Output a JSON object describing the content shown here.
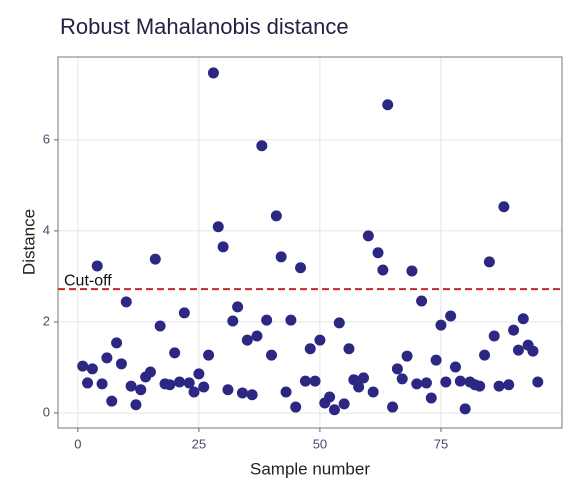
{
  "chart_data": {
    "type": "scatter",
    "title": "Robust Mahalanobis distance",
    "x_label": "Sample number",
    "y_label": "Distance",
    "x": [
      1,
      2,
      3,
      4,
      5,
      6,
      7,
      8,
      9,
      10,
      11,
      12,
      13,
      14,
      15,
      16,
      17,
      18,
      19,
      20,
      21,
      22,
      23,
      24,
      25,
      26,
      27,
      28,
      29,
      30,
      31,
      32,
      33,
      34,
      35,
      36,
      37,
      38,
      39,
      40,
      41,
      42,
      43,
      44,
      45,
      46,
      47,
      48,
      49,
      50,
      51,
      52,
      53,
      54,
      55,
      56,
      57,
      58,
      59,
      60,
      61,
      62,
      63,
      64,
      65,
      66,
      67,
      68,
      69,
      70,
      71,
      72,
      73,
      74,
      75,
      76,
      77,
      78,
      79,
      80,
      81,
      82,
      83,
      84,
      85,
      86,
      87,
      88,
      89,
      90,
      91,
      92,
      93,
      94,
      95
    ],
    "values": [
      1.03,
      0.66,
      0.97,
      3.23,
      0.64,
      1.21,
      0.26,
      1.54,
      1.08,
      2.44,
      0.59,
      0.18,
      0.51,
      0.79,
      0.9,
      3.38,
      1.91,
      0.64,
      0.62,
      1.32,
      0.68,
      2.2,
      0.66,
      0.46,
      0.86,
      0.57,
      1.27,
      7.47,
      4.09,
      3.65,
      0.51,
      2.02,
      2.33,
      0.44,
      1.6,
      0.4,
      1.69,
      5.87,
      2.04,
      1.27,
      4.33,
      3.43,
      0.46,
      2.04,
      0.13,
      3.19,
      0.7,
      1.41,
      0.7,
      1.6,
      0.22,
      0.35,
      0.07,
      1.98,
      0.2,
      1.41,
      0.73,
      0.57,
      0.77,
      3.89,
      0.46,
      3.52,
      3.14,
      6.77,
      0.13,
      0.97,
      0.75,
      1.25,
      3.12,
      0.64,
      2.46,
      0.66,
      0.33,
      1.16,
      1.93,
      0.68,
      2.13,
      1.01,
      0.7,
      0.09,
      0.68,
      0.62,
      0.59,
      1.27,
      3.32,
      1.69,
      0.59,
      4.53,
      0.62,
      1.82,
      1.38,
      2.07,
      1.49,
      1.36,
      0.68
    ],
    "color": "#2b2782",
    "cutoff": 2.72,
    "cutoff_label": "Cut-off",
    "cutoff_color": "#c62828",
    "xlim": [
      -4.1,
      100
    ],
    "ylim": [
      -0.33,
      7.82
    ],
    "xticks": [
      0,
      25,
      50,
      75
    ],
    "yticks": [
      0,
      2,
      4,
      6
    ],
    "grid": true
  }
}
